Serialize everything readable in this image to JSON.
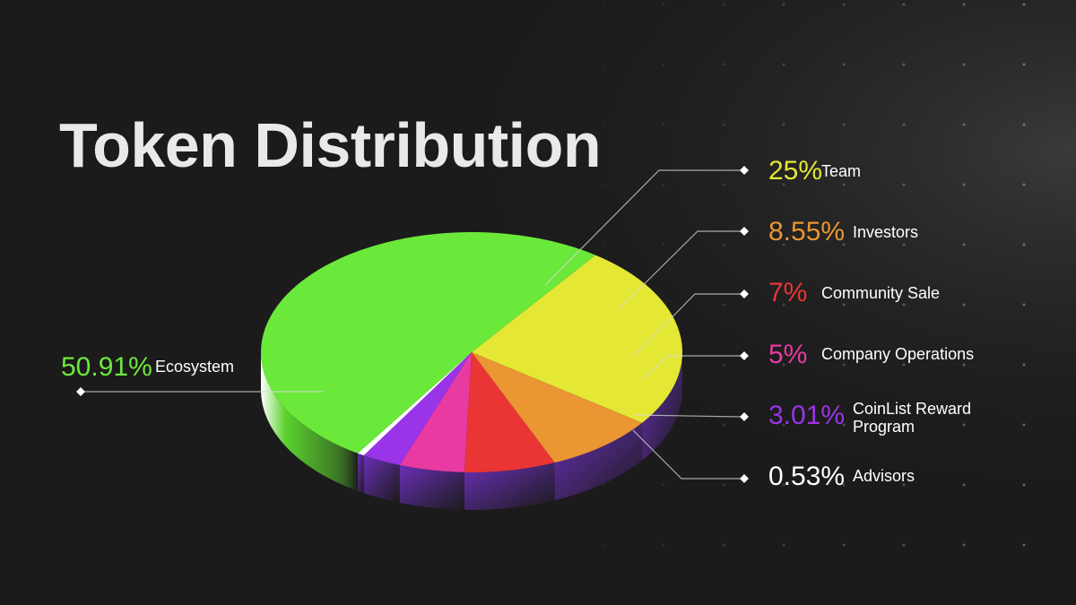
{
  "title": "Token Distribution",
  "colors": {
    "background": "#1b1b1b",
    "text": "#ffffff"
  },
  "chart_data": {
    "type": "pie",
    "style": "3d",
    "slices": [
      {
        "label": "Team",
        "value": 25,
        "display": "25%",
        "color": "#e4e834"
      },
      {
        "label": "Investors",
        "value": 8.55,
        "display": "8.55%",
        "color": "#e99633"
      },
      {
        "label": "Community Sale",
        "value": 7,
        "display": "7%",
        "color": "#ea3535"
      },
      {
        "label": "Company Operations",
        "value": 5,
        "display": "5%",
        "color": "#e83aa0"
      },
      {
        "label": "CoinList Reward Program",
        "value": 3.01,
        "display": "3.01%",
        "color": "#9a34e8"
      },
      {
        "label": "Advisors",
        "value": 0.53,
        "display": "0.53%",
        "color": "#ffffff"
      },
      {
        "label": "Ecosystem",
        "value": 50.91,
        "display": "50.91%",
        "color": "#6be93a"
      }
    ]
  }
}
